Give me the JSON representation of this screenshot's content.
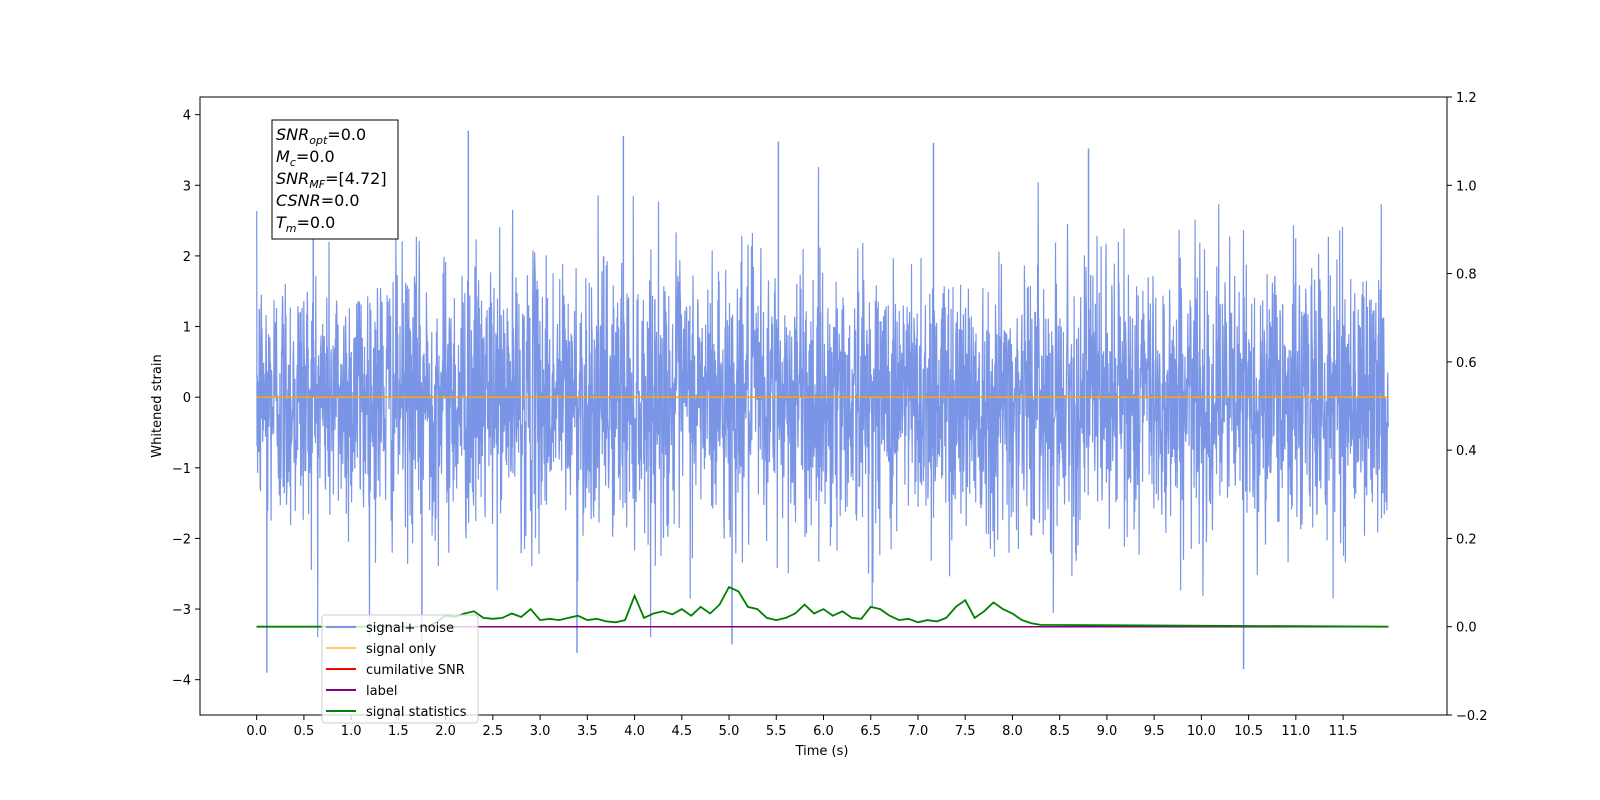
{
  "chart_data": {
    "type": "line",
    "xlabel": "Time (s)",
    "ylabel": "Whitened strain",
    "xlim": [
      -0.6,
      12.6
    ],
    "ylim": [
      -4.5,
      4.25
    ],
    "ylim_right": [
      -0.2,
      1.2
    ],
    "x_ticks": [
      "0.0",
      "0.5",
      "1.0",
      "1.5",
      "2.0",
      "2.5",
      "3.0",
      "3.5",
      "4.0",
      "4.5",
      "5.0",
      "5.5",
      "6.0",
      "6.5",
      "7.0",
      "7.5",
      "8.0",
      "8.5",
      "9.0",
      "9.5",
      "10.0",
      "10.5",
      "11.0",
      "11.5"
    ],
    "y_ticks_left": [
      "−4",
      "−3",
      "−2",
      "−1",
      "0",
      "1",
      "2",
      "3",
      "4"
    ],
    "y_ticks_right": [
      "−0.2",
      "0.0",
      "0.2",
      "0.4",
      "0.6",
      "0.8",
      "1.0",
      "1.2"
    ],
    "grid": false,
    "legend_position": "lower-left",
    "annotation_box": {
      "position": "top-left",
      "lines": [
        {
          "sym": "SNR",
          "sub": "opt",
          "val": "=0.0"
        },
        {
          "sym": "M",
          "sub": "c",
          "val": "=0.0"
        },
        {
          "sym": "SNR",
          "sub": "MF",
          "val": "=[4.72]"
        },
        {
          "sym": "CSNR",
          "sub": "",
          "val": "=0.0"
        },
        {
          "sym": "T",
          "sub": "m",
          "val": "=0.0"
        }
      ]
    },
    "series": [
      {
        "name": "signal+ noise",
        "axis": "left",
        "color": "#7a95e6",
        "description_noise": {
          "t_start": 0.0,
          "t_end": 11.98,
          "typical_range": [
            -2.0,
            2.2
          ],
          "peak_values": [
            3.85,
            3.77,
            3.7,
            3.62,
            3.6,
            3.52,
            -3.85,
            -3.9,
            -4.0,
            -3.62,
            -3.5
          ]
        }
      },
      {
        "name": "signal only",
        "axis": "left",
        "color": "#ffa500",
        "x": [
          0.0,
          11.98
        ],
        "y": [
          0.0,
          0.0
        ]
      },
      {
        "name": "cumilative SNR",
        "axis": "right",
        "color": "#ff0000",
        "x": [
          0.0,
          11.98
        ],
        "y": [
          0.0,
          0.0
        ]
      },
      {
        "name": "label",
        "axis": "right",
        "color": "#800080",
        "x": [
          0.0,
          11.98
        ],
        "y": [
          0.0,
          0.0
        ]
      },
      {
        "name": "signal statistics",
        "axis": "right",
        "color": "#008000",
        "x": [
          0.0,
          1.8,
          1.9,
          2.0,
          2.1,
          2.2,
          2.3,
          2.4,
          2.5,
          2.6,
          2.7,
          2.8,
          2.9,
          3.0,
          3.1,
          3.2,
          3.3,
          3.4,
          3.5,
          3.6,
          3.7,
          3.8,
          3.9,
          4.0,
          4.1,
          4.2,
          4.3,
          4.4,
          4.5,
          4.6,
          4.7,
          4.8,
          4.9,
          5.0,
          5.1,
          5.2,
          5.3,
          5.4,
          5.5,
          5.6,
          5.7,
          5.8,
          5.9,
          6.0,
          6.1,
          6.2,
          6.3,
          6.4,
          6.5,
          6.6,
          6.7,
          6.8,
          6.9,
          7.0,
          7.1,
          7.2,
          7.3,
          7.4,
          7.5,
          7.6,
          7.7,
          7.8,
          7.9,
          8.0,
          8.1,
          8.2,
          8.3,
          11.98
        ],
        "y": [
          0.0,
          0.0,
          0.01,
          0.025,
          0.022,
          0.03,
          0.035,
          0.02,
          0.018,
          0.02,
          0.03,
          0.022,
          0.04,
          0.015,
          0.018,
          0.015,
          0.02,
          0.025,
          0.015,
          0.018,
          0.012,
          0.01,
          0.015,
          0.07,
          0.02,
          0.03,
          0.035,
          0.028,
          0.04,
          0.025,
          0.045,
          0.03,
          0.05,
          0.09,
          0.08,
          0.045,
          0.04,
          0.02,
          0.015,
          0.02,
          0.03,
          0.05,
          0.03,
          0.04,
          0.025,
          0.035,
          0.02,
          0.018,
          0.045,
          0.04,
          0.025,
          0.015,
          0.018,
          0.01,
          0.015,
          0.012,
          0.02,
          0.045,
          0.06,
          0.02,
          0.035,
          0.055,
          0.04,
          0.03,
          0.015,
          0.008,
          0.004,
          0.0
        ]
      }
    ]
  }
}
